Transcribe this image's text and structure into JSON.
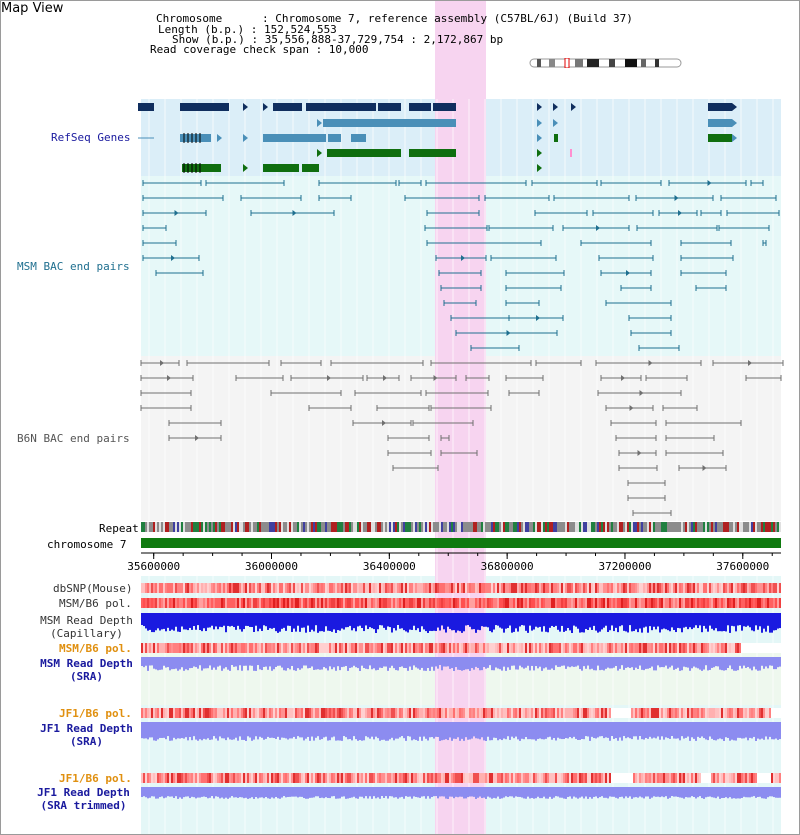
{
  "title": "Map View",
  "header": {
    "chromosome": "Chromosome      : Chromosome 7, reference assembly (C57BL/6J) (Build 37)",
    "length": "Length (b.p.) : 152,524,553",
    "show": "Show (b.p.) : 35,556,888-37,729,754 : 2,172,867 bp",
    "coverage": "Read coverage check span : 10,000"
  },
  "tracks": {
    "refseq": "RefSeq Genes",
    "msm_bac": "MSM BAC end pairs",
    "b6n_bac": "B6N BAC end pairs",
    "repeat": "Repeat",
    "chromosome": "chromosome 7",
    "dbsnp": "dbSNP(Mouse)",
    "msm_b6_pol_1": "MSM/B6 pol.",
    "msm_depth_cap_1": "MSM Read Depth",
    "msm_depth_cap_2": "(Capillary)",
    "msm_b6_pol_2": "MSM/B6 pol.",
    "msm_depth_sra_1": "MSM Read Depth",
    "msm_depth_sra_2": "(SRA)",
    "jf1_b6_pol_1": "JF1/B6 pol.",
    "jf1_depth_sra_1": "JF1 Read Depth",
    "jf1_depth_sra_2": "(SRA)",
    "jf1_b6_pol_2": "JF1/B6 pol.",
    "jf1_depth_trim_1": "JF1 Read Depth",
    "jf1_depth_trim_2": "(SRA trimmed)"
  },
  "axis_ticks": [
    "35600000",
    "36000000",
    "36400000",
    "36800000",
    "37200000",
    "37600000"
  ],
  "colors": {
    "refseq_dark": "#102e5e",
    "refseq_mid": "#4a8fb8",
    "refseq_green": "#0f6e0f",
    "msm_bac": "#1f6f8f",
    "b6n_bac": "#707070",
    "highlight": "#f7d4f0",
    "chromosome_bar": "#0f7a0f",
    "depth_dark": "#1a1ae0",
    "depth_light": "#8c8cf0",
    "label_blue": "#1a1a9e",
    "label_orange": "#e09010"
  }
}
